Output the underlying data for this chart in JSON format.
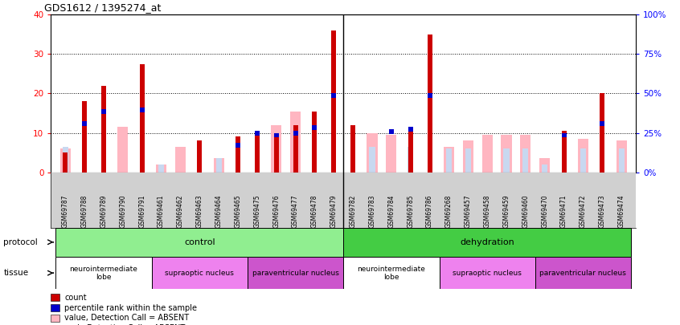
{
  "title": "GDS1612 / 1395274_at",
  "samples": [
    "GSM69787",
    "GSM69788",
    "GSM69789",
    "GSM69790",
    "GSM69791",
    "GSM69461",
    "GSM69462",
    "GSM69463",
    "GSM69464",
    "GSM69465",
    "GSM69475",
    "GSM69476",
    "GSM69477",
    "GSM69478",
    "GSM69479",
    "GSM69782",
    "GSM69783",
    "GSM69784",
    "GSM69785",
    "GSM69786",
    "GSM69268",
    "GSM69457",
    "GSM69458",
    "GSM69459",
    "GSM69460",
    "GSM69470",
    "GSM69471",
    "GSM69472",
    "GSM69473",
    "GSM69474"
  ],
  "count": [
    5.0,
    18.0,
    22.0,
    0.0,
    27.5,
    0.0,
    0.0,
    8.0,
    0.0,
    9.0,
    10.5,
    10.0,
    12.0,
    15.5,
    36.0,
    12.0,
    0.0,
    0.0,
    11.0,
    35.0,
    0.0,
    0.0,
    0.0,
    0.0,
    0.0,
    0.0,
    10.5,
    0.0,
    20.0,
    0.0
  ],
  "percentile": [
    0.0,
    13.0,
    16.0,
    0.0,
    16.5,
    0.0,
    0.0,
    0.0,
    0.0,
    7.5,
    10.5,
    10.0,
    10.5,
    12.0,
    20.0,
    0.0,
    0.0,
    11.0,
    11.5,
    20.0,
    0.0,
    0.0,
    0.0,
    0.0,
    0.0,
    0.0,
    10.0,
    0.0,
    13.0,
    0.0
  ],
  "value_absent": [
    6.0,
    0.0,
    0.0,
    11.5,
    0.0,
    2.0,
    6.5,
    0.0,
    3.5,
    0.0,
    0.0,
    12.0,
    15.5,
    0.0,
    0.0,
    0.0,
    10.0,
    9.5,
    0.0,
    0.0,
    6.5,
    8.0,
    9.5,
    9.5,
    9.5,
    3.5,
    0.0,
    8.5,
    0.0,
    8.0
  ],
  "rank_absent": [
    6.5,
    0.0,
    0.0,
    0.0,
    0.0,
    2.0,
    0.0,
    0.0,
    3.5,
    0.0,
    0.0,
    0.0,
    0.0,
    0.0,
    0.0,
    0.0,
    6.5,
    0.0,
    6.5,
    0.0,
    6.0,
    6.0,
    0.0,
    6.0,
    6.0,
    2.0,
    0.0,
    6.0,
    0.0,
    6.0
  ],
  "protocol_groups": [
    {
      "label": "control",
      "start": 0,
      "end": 15,
      "color": "#90ee90"
    },
    {
      "label": "dehydration",
      "start": 15,
      "end": 30,
      "color": "#44cc44"
    }
  ],
  "tissue_groups": [
    {
      "label": "neurointermediate\nlobe",
      "start": 0,
      "end": 5,
      "color": "#ffffff"
    },
    {
      "label": "supraoptic nucleus",
      "start": 5,
      "end": 10,
      "color": "#ee82ee"
    },
    {
      "label": "paraventricular nucleus",
      "start": 10,
      "end": 15,
      "color": "#cc55cc"
    },
    {
      "label": "neurointermediate\nlobe",
      "start": 15,
      "end": 20,
      "color": "#ffffff"
    },
    {
      "label": "supraoptic nucleus",
      "start": 20,
      "end": 25,
      "color": "#ee82ee"
    },
    {
      "label": "paraventricular nucleus",
      "start": 25,
      "end": 30,
      "color": "#cc55cc"
    }
  ],
  "ylim_left": [
    0,
    40
  ],
  "ylim_right": [
    0,
    100
  ],
  "yticks_left": [
    0,
    10,
    20,
    30,
    40
  ],
  "yticks_right": [
    0,
    25,
    50,
    75,
    100
  ],
  "color_count": "#cc0000",
  "color_percentile": "#0000cc",
  "color_value_absent": "#ffb6c1",
  "color_rank_absent": "#c8d8f0",
  "chart_bg": "#f0f0f0",
  "xtick_bg": "#d0d0d0"
}
